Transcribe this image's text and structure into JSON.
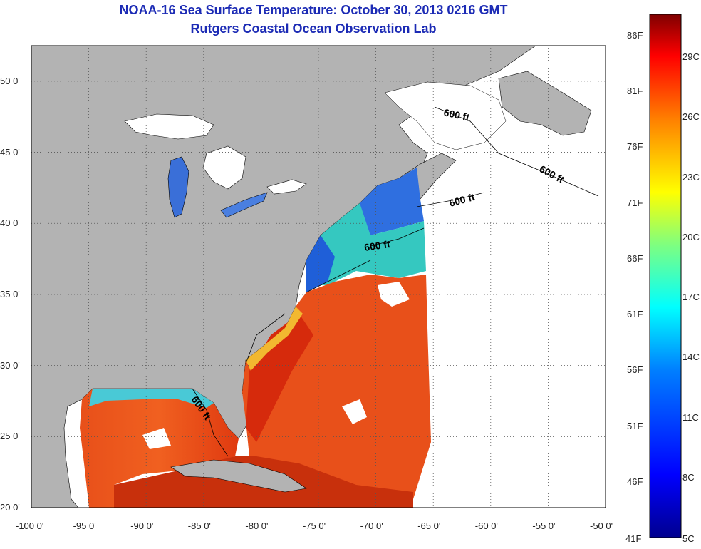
{
  "header": {
    "title": "NOAA-16 Sea Surface Temperature:  October 30, 2013 0216 GMT",
    "subtitle": "Rutgers Coastal Ocean Observation Lab"
  },
  "map": {
    "lon_ticks": [
      "-100 0'",
      "-95 0'",
      "-90 0'",
      "-85 0'",
      "-80 0'",
      "-75 0'",
      "-70 0'",
      "-65 0'",
      "-60 0'",
      "-55 0'",
      "-50 0'"
    ],
    "lat_ticks": [
      "50 0'",
      "45 0'",
      "40 0'",
      "35 0'",
      "30 0'",
      "25 0'",
      "20 0'"
    ],
    "lon_range": [
      -100,
      -50
    ],
    "lat_range": [
      20,
      52.5
    ],
    "contour_labels": [
      "600 ft",
      "600 ft",
      "600 ft",
      "600 ft",
      "600 ft"
    ],
    "colors": {
      "land": "#b3b3b3",
      "ocean_nodata": "#ffffff",
      "lakes": "#ffffff"
    }
  },
  "colorbar": {
    "fahrenheit_labels": [
      "86F",
      "81F",
      "76F",
      "71F",
      "66F",
      "61F",
      "56F",
      "51F",
      "46F",
      "41F"
    ],
    "celsius_labels": [
      "29C",
      "26C",
      "23C",
      "20C",
      "17C",
      "14C",
      "11C",
      "8C",
      "5C"
    ],
    "colors": [
      "#7f0000",
      "#ff0000",
      "#ff7f00",
      "#ffff00",
      "#7fff7f",
      "#00ffff",
      "#007fff",
      "#0000ff",
      "#00008f"
    ]
  }
}
